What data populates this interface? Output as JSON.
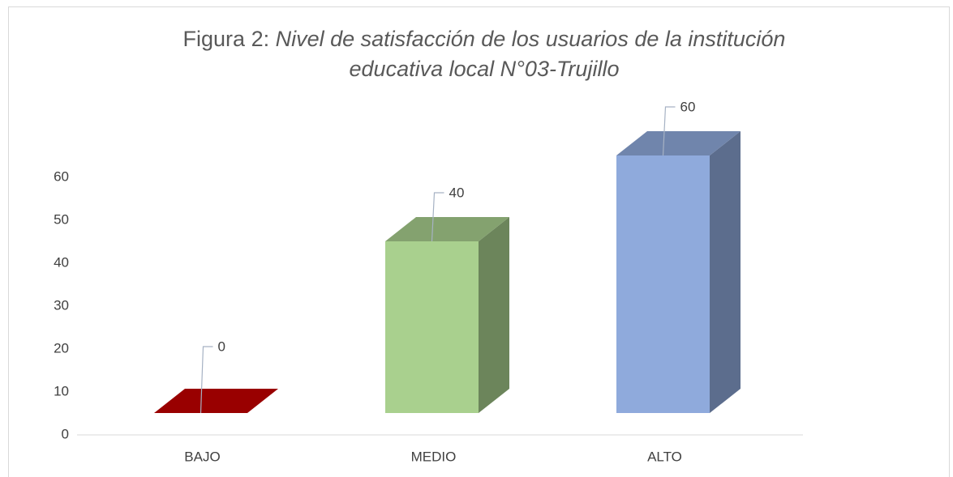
{
  "chart_data": {
    "type": "bar3d",
    "title_label": "Figura 2:",
    "title_lines": [
      "Nivel de satisfacción de los usuarios de la institución",
      "educativa local N°03-Trujillo"
    ],
    "categories": [
      "BAJO",
      "MEDIO",
      "ALTO"
    ],
    "values": [
      0,
      40,
      60
    ],
    "colors": [
      "#990000",
      "#a9d08e",
      "#8faadc"
    ],
    "ylim": [
      0,
      60
    ],
    "yticks": [
      0,
      10,
      20,
      30,
      40,
      50,
      60
    ],
    "data_labels": true
  }
}
